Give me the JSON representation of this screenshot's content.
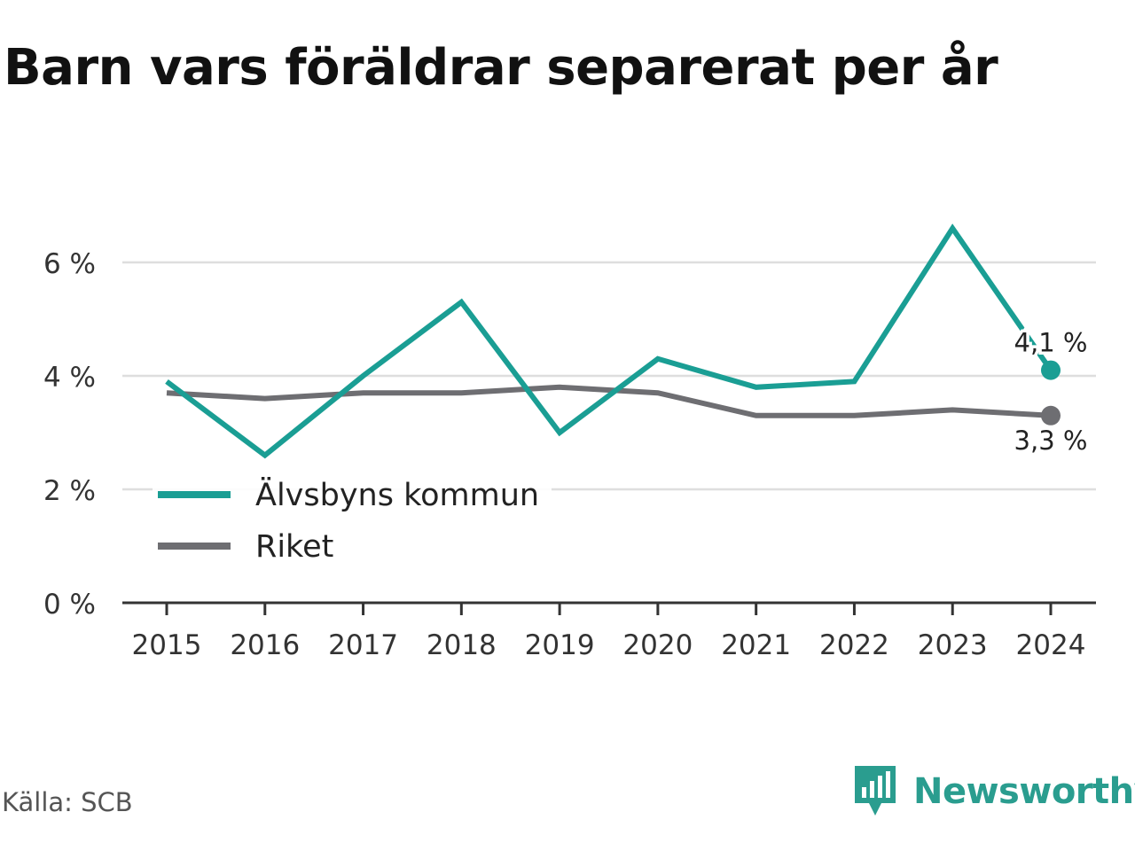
{
  "title": "Barn vars föräldrar separerat per år",
  "source": "Källa: SCB",
  "brand": "Newsworthy",
  "chart_data": {
    "type": "line",
    "x": [
      "2015",
      "2016",
      "2017",
      "2018",
      "2019",
      "2020",
      "2021",
      "2022",
      "2023",
      "2024"
    ],
    "y_ticks": [
      "0 %",
      "2 %",
      "4 %",
      "6 %"
    ],
    "y_tick_values": [
      0,
      2,
      4,
      6
    ],
    "ylim": [
      0,
      7
    ],
    "grid": true,
    "legend_position": "bottom-left",
    "series": [
      {
        "name": "Älvsbyns kommun",
        "color": "#1a9e94",
        "values": [
          3.9,
          2.6,
          4.0,
          5.3,
          3.0,
          4.3,
          3.8,
          3.9,
          6.6,
          4.1
        ],
        "end_label": "4,1 %"
      },
      {
        "name": "Riket",
        "color": "#6e6e72",
        "values": [
          3.7,
          3.6,
          3.7,
          3.7,
          3.8,
          3.7,
          3.3,
          3.3,
          3.4,
          3.3
        ],
        "end_label": "3,3 %"
      }
    ]
  }
}
